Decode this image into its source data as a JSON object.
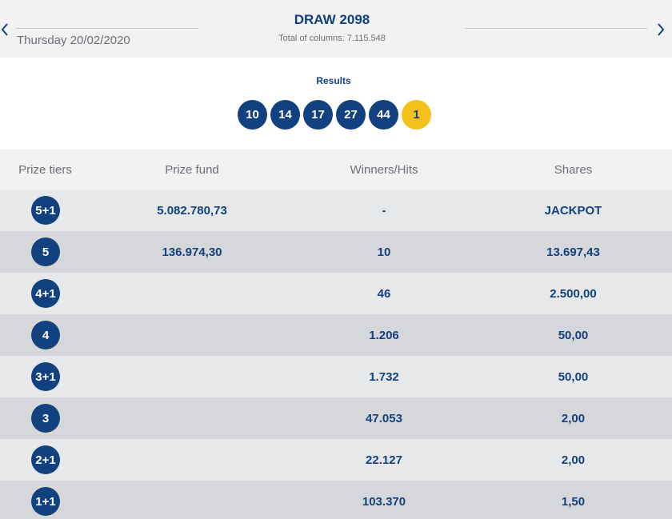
{
  "header": {
    "date": "Thursday 20/02/2020",
    "title": "DRAW 2098",
    "columns_text": "Total of columns: 7.115.548"
  },
  "results": {
    "label": "Results",
    "numbers": [
      "10",
      "14",
      "17",
      "27",
      "44"
    ],
    "bonus": "1"
  },
  "table": {
    "headers": {
      "tier": "Prize tiers",
      "fund": "Prize fund",
      "winners": "Winners/Hits",
      "shares": "Shares"
    },
    "rows": [
      {
        "tier": "5+1",
        "fund": "5.082.780,73",
        "winners": "-",
        "shares": "JACKPOT"
      },
      {
        "tier": "5",
        "fund": "136.974,30",
        "winners": "10",
        "shares": "13.697,43"
      },
      {
        "tier": "4+1",
        "fund": "",
        "winners": "46",
        "shares": "2.500,00"
      },
      {
        "tier": "4",
        "fund": "",
        "winners": "1.206",
        "shares": "50,00"
      },
      {
        "tier": "3+1",
        "fund": "",
        "winners": "1.732",
        "shares": "50,00"
      },
      {
        "tier": "3",
        "fund": "",
        "winners": "47.053",
        "shares": "2,00"
      },
      {
        "tier": "2+1",
        "fund": "",
        "winners": "22.127",
        "shares": "2,00"
      },
      {
        "tier": "1+1",
        "fund": "",
        "winners": "103.370",
        "shares": "1,50"
      }
    ]
  },
  "colors": {
    "brand_blue": "#12417f",
    "bonus_yellow": "#f5c21b",
    "muted_text": "#6d6f77"
  }
}
